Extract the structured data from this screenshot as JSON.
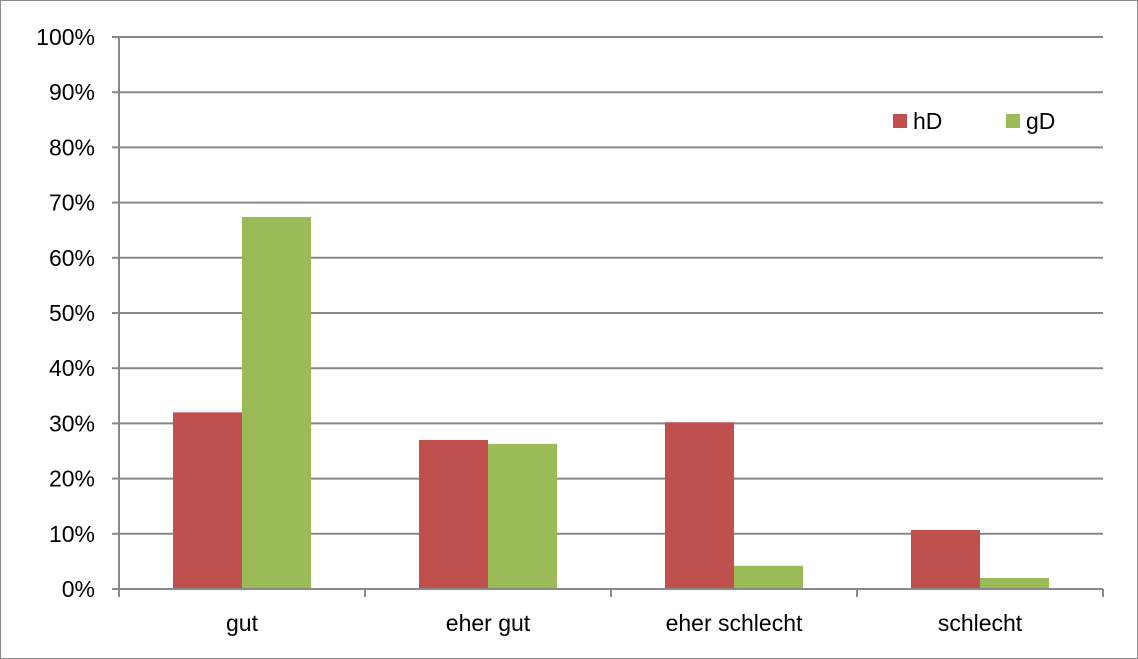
{
  "chart_data": {
    "type": "bar",
    "categories": [
      "gut",
      "eher gut",
      "eher schlecht",
      "schlecht"
    ],
    "series": [
      {
        "name": "hD",
        "values": [
          32,
          27,
          30.2,
          10.7
        ],
        "color": "#c0504d"
      },
      {
        "name": "gD",
        "values": [
          67.4,
          26.3,
          4.2,
          2.0
        ],
        "color": "#9bbb59"
      }
    ],
    "ylim": [
      0,
      100
    ],
    "yticks": [
      "0%",
      "10%",
      "20%",
      "30%",
      "40%",
      "50%",
      "60%",
      "70%",
      "80%",
      "90%",
      "100%"
    ],
    "ytick_values": [
      0,
      10,
      20,
      30,
      40,
      50,
      60,
      70,
      80,
      90,
      100
    ],
    "grid": true,
    "legend_position": "top-right",
    "title": "",
    "xlabel": "",
    "ylabel": ""
  }
}
